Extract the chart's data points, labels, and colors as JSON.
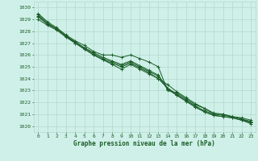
{
  "background_color": "#cff0e8",
  "grid_color": "#b0d8cc",
  "line_color": "#1a5c28",
  "xlabel": "Graphe pression niveau de la mer (hPa)",
  "xlim": [
    -0.5,
    23.5
  ],
  "ylim": [
    1019.5,
    1030.5
  ],
  "yticks": [
    1020,
    1021,
    1022,
    1023,
    1024,
    1025,
    1026,
    1027,
    1028,
    1029,
    1030
  ],
  "xticks": [
    0,
    1,
    2,
    3,
    4,
    5,
    6,
    7,
    8,
    9,
    10,
    11,
    12,
    13,
    14,
    15,
    16,
    17,
    18,
    19,
    20,
    21,
    22,
    23
  ],
  "series": [
    [
      1029.5,
      1028.8,
      1028.3,
      1027.7,
      1027.2,
      1026.8,
      1026.3,
      1026.0,
      1026.0,
      1025.8,
      1026.0,
      1025.7,
      1025.4,
      1025.0,
      1023.0,
      1022.8,
      1022.3,
      1021.8,
      1021.5,
      1021.0,
      1021.0,
      1020.8,
      1020.7,
      1020.5
    ],
    [
      1029.3,
      1028.6,
      1028.2,
      1027.6,
      1027.1,
      1026.6,
      1026.2,
      1025.8,
      1025.5,
      1025.2,
      1025.5,
      1025.1,
      1024.7,
      1024.3,
      1023.2,
      1022.7,
      1022.2,
      1021.7,
      1021.3,
      1021.0,
      1020.9,
      1020.8,
      1020.6,
      1020.4
    ],
    [
      1029.0,
      1028.5,
      1028.1,
      1027.5,
      1027.0,
      1026.5,
      1026.0,
      1025.6,
      1025.3,
      1025.0,
      1025.3,
      1024.9,
      1024.5,
      1024.0,
      1023.2,
      1022.6,
      1022.1,
      1021.6,
      1021.2,
      1020.9,
      1020.8,
      1020.7,
      1020.5,
      1020.2
    ],
    [
      1029.2,
      1028.6,
      1028.2,
      1027.6,
      1027.1,
      1026.6,
      1026.1,
      1025.7,
      1025.4,
      1025.1,
      1025.4,
      1025.0,
      1024.6,
      1024.2,
      1023.1,
      1022.6,
      1022.1,
      1021.6,
      1021.2,
      1020.9,
      1020.8,
      1020.7,
      1020.5,
      1020.3
    ],
    [
      1029.4,
      1028.7,
      1028.2,
      1027.6,
      1027.0,
      1026.5,
      1026.0,
      1025.6,
      1025.2,
      1024.8,
      1025.2,
      1024.8,
      1024.4,
      1024.0,
      1023.5,
      1022.9,
      1022.4,
      1021.9,
      1021.5,
      1021.1,
      1021.0,
      1020.8,
      1020.6,
      1020.3
    ]
  ]
}
